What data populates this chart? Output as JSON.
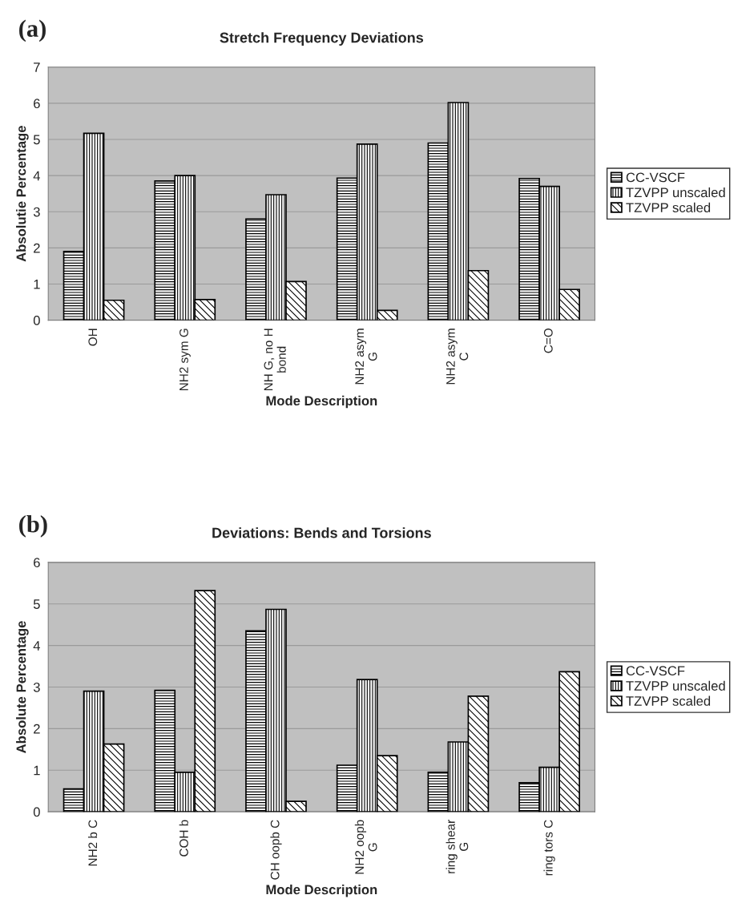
{
  "chart_data": [
    {
      "type": "bar",
      "title": "Stretch Frequency Deviations",
      "xlabel": "Mode Description",
      "ylabel": "Absolutie Percentage",
      "annotations": [
        "(a)"
      ],
      "categories": [
        "OH",
        "NH2 sym G",
        "NH G, no H\nbond",
        "NH2 asym\nG",
        "NH2 asym\nC",
        "C=O"
      ],
      "series": [
        {
          "name": "CC-VSCF",
          "color": "#000000",
          "values": [
            1.9,
            3.85,
            2.8,
            3.93,
            4.9,
            3.92
          ]
        },
        {
          "name": "TZVPP unscaled",
          "color": "#000000",
          "values": [
            5.17,
            4.0,
            3.47,
            4.87,
            6.02,
            3.7
          ]
        },
        {
          "name": "TZVPP scaled",
          "color": "#000000",
          "values": [
            0.55,
            0.57,
            1.07,
            0.27,
            1.37,
            0.85
          ]
        }
      ],
      "ylim": [
        0,
        7
      ],
      "yticks": [
        0,
        1,
        2,
        3,
        4,
        5,
        6,
        7
      ],
      "grid": "y",
      "legend": "right"
    },
    {
      "type": "bar",
      "title": "Deviations: Bends and Torsions",
      "xlabel": "Mode Description",
      "ylabel": "Absolute Percentage",
      "annotations": [
        "(b)"
      ],
      "categories": [
        "NH2 b C",
        "COH b",
        "CH oopb C",
        "NH2 oopb\nG",
        "ring shear\nG",
        "ring tors C"
      ],
      "series": [
        {
          "name": "CC-VSCF",
          "color": "#000000",
          "values": [
            0.55,
            2.92,
            4.35,
            1.12,
            0.95,
            0.7
          ]
        },
        {
          "name": "TZVPP unscaled",
          "color": "#000000",
          "values": [
            2.9,
            0.95,
            4.87,
            3.18,
            1.68,
            1.07
          ]
        },
        {
          "name": "TZVPP scaled",
          "color": "#000000",
          "values": [
            1.63,
            5.32,
            0.25,
            1.35,
            2.78,
            3.37
          ]
        }
      ],
      "ylim": [
        0,
        6
      ],
      "yticks": [
        0,
        1,
        2,
        3,
        4,
        5,
        6
      ],
      "grid": "y",
      "legend": "right"
    }
  ]
}
